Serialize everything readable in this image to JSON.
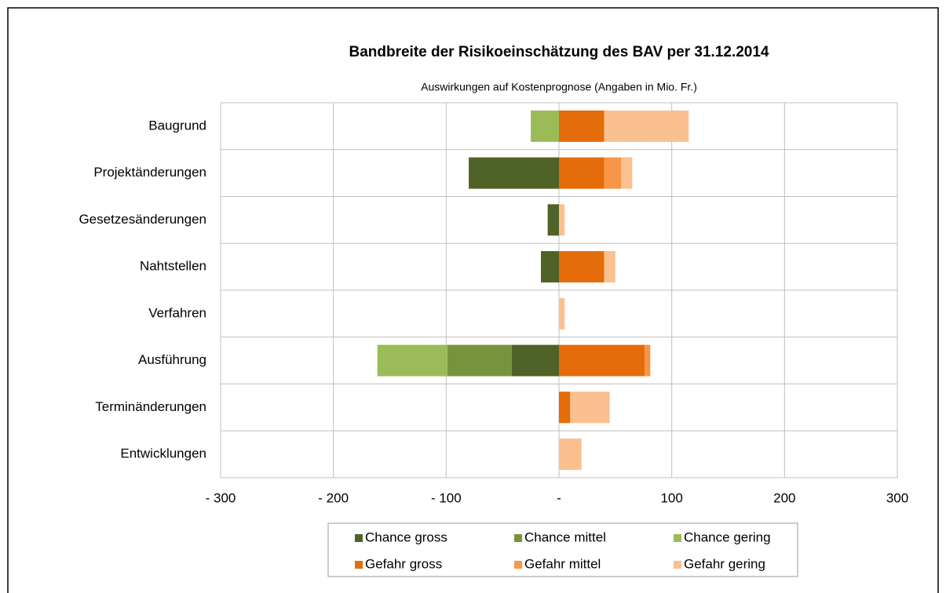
{
  "chart_data": {
    "type": "bar",
    "orientation": "horizontal",
    "stacked": true,
    "title": "Bandbreite der Risikoeinschätzung des BAV per 31.12.2014",
    "subtitle": "Auswirkungen auf Kostenprognose (Angaben in Mio. Fr.)",
    "categories": [
      "Baugrund",
      "Projektänderungen",
      "Gesetzesänderungen",
      "Nahtstellen",
      "Verfahren",
      "Ausführung",
      "Terminänderungen",
      "Entwicklungen"
    ],
    "series": [
      {
        "name": "Chance gross",
        "color": "#4f6228",
        "values": [
          null,
          -80,
          -10,
          -16,
          null,
          -42,
          null,
          null
        ]
      },
      {
        "name": "Chance mittel",
        "color": "#77933c",
        "values": [
          null,
          null,
          null,
          null,
          null,
          -57,
          null,
          null
        ]
      },
      {
        "name": "Chance gering",
        "color": "#9bbb59",
        "values": [
          -25,
          null,
          null,
          null,
          null,
          -62,
          null,
          null
        ]
      },
      {
        "name": "Gefahr gross",
        "color": "#e46c0a",
        "values": [
          40,
          40,
          null,
          40,
          null,
          76,
          10,
          null
        ]
      },
      {
        "name": "Gefahr mittel",
        "color": "#f79646",
        "values": [
          null,
          15,
          null,
          null,
          null,
          5,
          null,
          null
        ]
      },
      {
        "name": "Gefahr gering",
        "color": "#fac090",
        "values": [
          75,
          10,
          5,
          10,
          5,
          null,
          35,
          20
        ]
      }
    ],
    "xlim": [
      -300,
      300
    ],
    "xticks": [
      {
        "value": -300,
        "label": "- 300"
      },
      {
        "value": -200,
        "label": "- 200"
      },
      {
        "value": -100,
        "label": "- 100"
      },
      {
        "value": 0,
        "label": "-"
      },
      100,
      200,
      300
    ],
    "grid": true
  }
}
